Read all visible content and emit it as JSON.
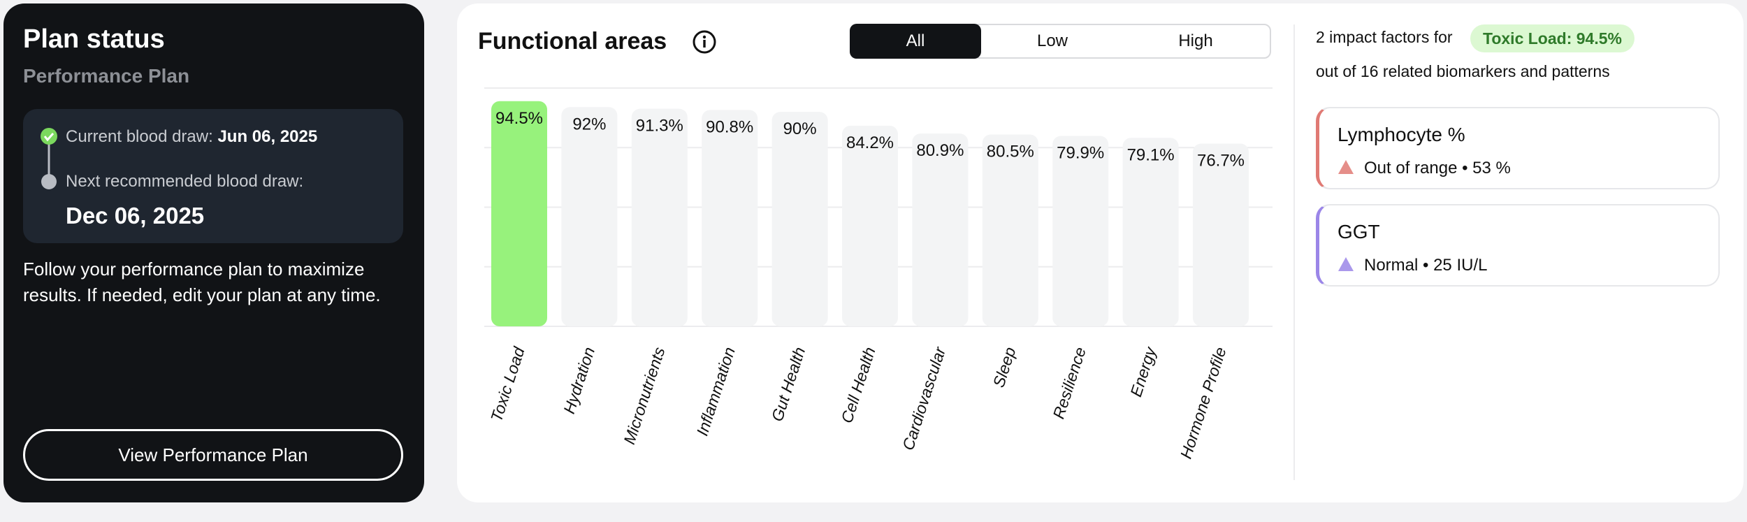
{
  "plan_status": {
    "title": "Plan status",
    "subtitle": "Performance Plan",
    "current_label": "Current blood draw:",
    "current_date": "Jun 06, 2025",
    "next_label": "Next recommended blood draw:",
    "next_date": "Dec 06, 2025",
    "description": "Follow your performance plan to maximize results. If needed, edit your plan at any time.",
    "button": "View Performance Plan"
  },
  "filters": [
    "All",
    "Low",
    "High"
  ],
  "chart_data": {
    "type": "bar",
    "title": "Functional areas",
    "categories": [
      "Toxic Load",
      "Hydration",
      "Micronutrients",
      "Inflammation",
      "Gut Health",
      "Cell Health",
      "Cardiovascular",
      "Sleep",
      "Resilience",
      "Energy",
      "Hormone Profile"
    ],
    "values": [
      94.5,
      92,
      91.3,
      90.8,
      90,
      84.2,
      80.9,
      80.5,
      79.9,
      79.1,
      76.7
    ],
    "value_labels": [
      "94.5%",
      "92%",
      "91.3%",
      "90.8%",
      "90%",
      "84.2%",
      "80.9%",
      "80.5%",
      "79.9%",
      "79.1%",
      "76.7%"
    ],
    "colors": [
      "#97f27c",
      "#f3f4f5",
      "#f3f4f5",
      "#f3f4f5",
      "#f3f4f5",
      "#f3f4f5",
      "#f3f4f5",
      "#f3f4f5",
      "#f3f4f5",
      "#f3f4f5",
      "#f3f4f5"
    ],
    "ylim": [
      0,
      100
    ],
    "yticks": [
      0,
      25,
      50,
      75,
      100
    ],
    "grid": true
  },
  "impact": {
    "intro": "2 impact factors for",
    "badge": "Toxic Load: 94.5%",
    "sub": "out of 16 related biomarkers and patterns",
    "factors": [
      {
        "name": "Lymphocyte %",
        "detail": "Out of range • 53 %",
        "color": "#e07a74"
      },
      {
        "name": "GGT",
        "detail": "Normal • 25 IU/L",
        "color": "#9b86e8"
      }
    ]
  }
}
